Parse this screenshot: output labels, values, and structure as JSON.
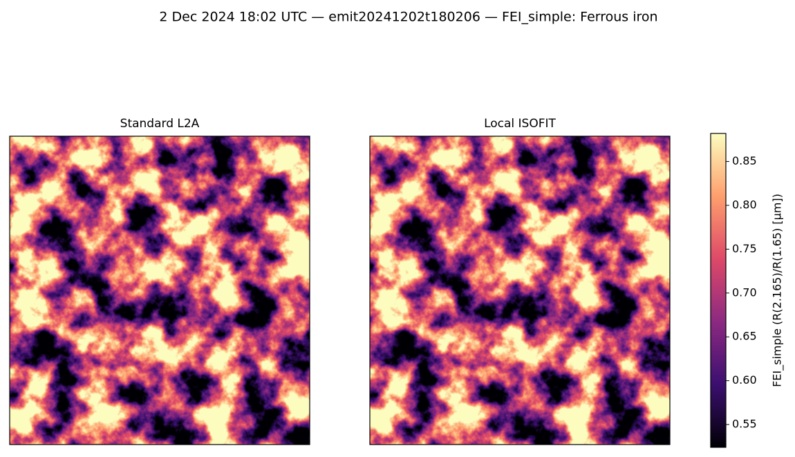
{
  "title": "2 Dec 2024 18:02 UTC — emit20241202t180206 — FEI_simple: Ferrous iron",
  "chart_data": [
    {
      "type": "image",
      "title": "Standard L2A"
    },
    {
      "type": "image",
      "title": "Local ISOFIT"
    }
  ],
  "colorbar": {
    "label": "FEI_simple  (R(2.165)/R(1.65)  [µm])",
    "colormap": [
      "#000004",
      "#3b0f70",
      "#8c2981",
      "#de4968",
      "#fe9f6d",
      "#fcfdbf"
    ],
    "clim": [
      0.524,
      0.882
    ],
    "ticks": [
      0.55,
      {
        "value": 0.6,
        "label": "0.60"
      },
      0.65,
      {
        "value": 0.7,
        "label": "0.70"
      },
      0.75,
      {
        "value": 0.8,
        "label": "0.80"
      },
      0.85
    ]
  }
}
